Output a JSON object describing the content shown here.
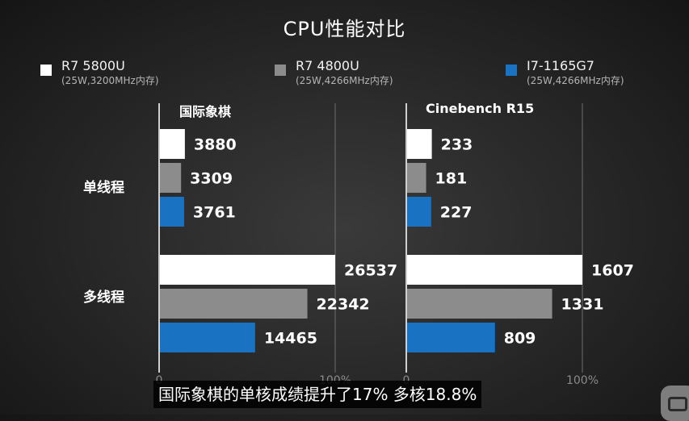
{
  "title": "CPU性能对比",
  "legend": [
    {
      "name": "R7 5800U",
      "sub": "(25W,3200MHz内存)",
      "color": "#ffffff"
    },
    {
      "name": "R7 4800U",
      "sub": "(25W,4266MHz内存)",
      "color": "#8c8c8c"
    },
    {
      "name": "I7-1165G7",
      "sub": "(25W,4266MHz内存)",
      "color": "#1a73c2"
    }
  ],
  "group_labels": [
    "单线程",
    "多线程"
  ],
  "caption": "国际象棋的单核成绩提升了17% 多核18.8%",
  "chart_data": [
    {
      "type": "bar",
      "title": "国际象棋",
      "categories": [
        "单线程",
        "多线程"
      ],
      "series": [
        {
          "name": "R7 5800U",
          "values": [
            3880,
            26537
          ],
          "color": "#ffffff"
        },
        {
          "name": "R7 4800U",
          "values": [
            3309,
            22342
          ],
          "color": "#8c8c8c"
        },
        {
          "name": "I7-1165G7",
          "values": [
            3761,
            14465
          ],
          "color": "#1a73c2"
        }
      ],
      "axis_ticks": [
        "0",
        "100%"
      ],
      "scale_max": [
        26537,
        26537
      ]
    },
    {
      "type": "bar",
      "title": "Cinebench R15",
      "categories": [
        "单线程",
        "多线程"
      ],
      "series": [
        {
          "name": "R7 5800U",
          "values": [
            233,
            1607
          ],
          "color": "#ffffff"
        },
        {
          "name": "R7 4800U",
          "values": [
            181,
            1331
          ],
          "color": "#8c8c8c"
        },
        {
          "name": "I7-1165G7",
          "values": [
            227,
            809
          ],
          "color": "#1a73c2"
        }
      ],
      "axis_ticks": [
        "0",
        "100%"
      ],
      "scale_max": [
        1607,
        1607
      ]
    }
  ]
}
